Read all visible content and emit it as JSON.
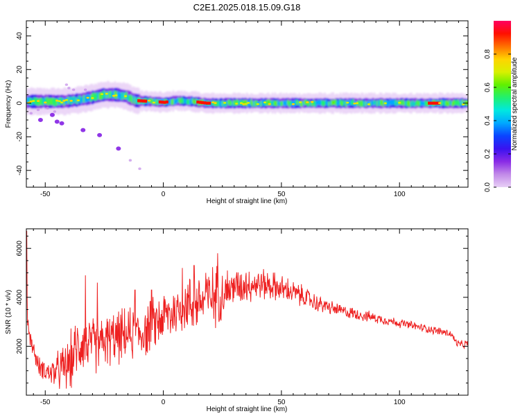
{
  "figure": {
    "title": "C2E1.2025.018.15.09.G18"
  },
  "chart_data": [
    {
      "type": "heatmap",
      "title": "",
      "xlabel": "Height of straight line (km)",
      "ylabel": "Frequency (Hz)",
      "xlim": [
        -58,
        129
      ],
      "ylim": [
        -50,
        49
      ],
      "xticks": [
        -50,
        0,
        50,
        100
      ],
      "yticks": [
        -40,
        -20,
        0,
        20,
        40
      ],
      "colorbar": {
        "label": "Normalized spectral amplitude",
        "range": [
          0,
          1
        ],
        "ticks": [
          "0.0",
          "0.2",
          "0.4",
          "0.6",
          "0.8"
        ],
        "colormap": [
          "#e8d0f6",
          "#c28ae8",
          "#8a2be6",
          "#3a12f0",
          "#0a44ff",
          "#00a8ff",
          "#00e8e0",
          "#20f070",
          "#60f000",
          "#d8f000",
          "#ffd400",
          "#ff7000",
          "#ff1000",
          "#ff0060"
        ]
      },
      "band_center_hz": [
        [
          -58,
          1
        ],
        [
          -50,
          1
        ],
        [
          -42,
          1
        ],
        [
          -36,
          2
        ],
        [
          -30,
          3.5
        ],
        [
          -26,
          5
        ],
        [
          -20,
          5
        ],
        [
          -16,
          4
        ],
        [
          -12,
          1.5
        ],
        [
          -5,
          1
        ],
        [
          0,
          0.5
        ],
        [
          5,
          1.5
        ],
        [
          12,
          1
        ],
        [
          18,
          0
        ],
        [
          30,
          0
        ],
        [
          60,
          0
        ],
        [
          90,
          0
        ],
        [
          110,
          0
        ],
        [
          129,
          0
        ]
      ],
      "strong_segments_km": [
        [
          -11,
          -8
        ],
        [
          -2,
          1
        ],
        [
          14,
          19
        ],
        [
          112,
          116
        ]
      ],
      "scattered_points": [
        {
          "x": -52,
          "y": -10
        },
        {
          "x": -47,
          "y": -7
        },
        {
          "x": -45,
          "y": -11
        },
        {
          "x": -43,
          "y": -12
        },
        {
          "x": -34,
          "y": -16
        },
        {
          "x": -27,
          "y": -19
        },
        {
          "x": -19,
          "y": -27
        },
        {
          "x": -14,
          "y": -34
        },
        {
          "x": -10,
          "y": -39
        },
        {
          "x": -53,
          "y": -4
        },
        {
          "x": -49,
          "y": -3
        },
        {
          "x": -40,
          "y": 9
        },
        {
          "x": -41,
          "y": 11
        },
        {
          "x": -38,
          "y": 8
        },
        {
          "x": -33,
          "y": 8
        },
        {
          "x": -56,
          "y": -6
        },
        {
          "x": -46,
          "y": -5
        }
      ]
    },
    {
      "type": "line",
      "title": "",
      "xlabel": "Height of straight line (km)",
      "ylabel": "SNR (10 * v/v)",
      "xlim": [
        -58,
        129
      ],
      "ylim": [
        0,
        6800
      ],
      "xticks": [
        -50,
        0,
        50,
        100
      ],
      "yticks": [
        2000,
        4000,
        6000
      ],
      "color": "#ee2020",
      "trend": [
        [
          -58,
          6700
        ],
        [
          -57.5,
          3000
        ],
        [
          -56,
          2200
        ],
        [
          -53,
          1200
        ],
        [
          -48,
          900
        ],
        [
          -44,
          1000
        ],
        [
          -40,
          1250
        ],
        [
          -35,
          2200
        ],
        [
          -30,
          2000
        ],
        [
          -25,
          2200
        ],
        [
          -18,
          2400
        ],
        [
          -12,
          2500
        ],
        [
          -8,
          2600
        ],
        [
          -4,
          2900
        ],
        [
          0,
          3200
        ],
        [
          5,
          3400
        ],
        [
          10,
          3700
        ],
        [
          15,
          3800
        ],
        [
          20,
          4000
        ],
        [
          25,
          4200
        ],
        [
          30,
          4400
        ],
        [
          35,
          4500
        ],
        [
          40,
          4550
        ],
        [
          45,
          4500
        ],
        [
          50,
          4350
        ],
        [
          55,
          4200
        ],
        [
          60,
          4000
        ],
        [
          65,
          3750
        ],
        [
          70,
          3600
        ],
        [
          75,
          3450
        ],
        [
          80,
          3350
        ],
        [
          85,
          3250
        ],
        [
          90,
          3150
        ],
        [
          95,
          3050
        ],
        [
          100,
          2950
        ],
        [
          105,
          2850
        ],
        [
          110,
          2750
        ],
        [
          115,
          2650
        ],
        [
          120,
          2550
        ],
        [
          122,
          2480
        ],
        [
          124,
          2150
        ],
        [
          126,
          2050
        ],
        [
          129,
          2100
        ]
      ],
      "noise_amplitude": [
        [
          -58,
          400
        ],
        [
          -50,
          500
        ],
        [
          -38,
          1500
        ],
        [
          -25,
          1300
        ],
        [
          -10,
          1300
        ],
        [
          0,
          1300
        ],
        [
          10,
          1400
        ],
        [
          22,
          1500
        ],
        [
          30,
          900
        ],
        [
          40,
          800
        ],
        [
          55,
          600
        ],
        [
          70,
          350
        ],
        [
          90,
          250
        ],
        [
          110,
          200
        ],
        [
          129,
          200
        ]
      ],
      "peaks": [
        {
          "x": -57.8,
          "y": 6700
        },
        {
          "x": -33,
          "y": 4900
        },
        {
          "x": -28,
          "y": 4600
        },
        {
          "x": -12,
          "y": 4300
        },
        {
          "x": -5,
          "y": 4300
        },
        {
          "x": 8,
          "y": 5200
        },
        {
          "x": 13,
          "y": 5300
        },
        {
          "x": 18,
          "y": 5000
        },
        {
          "x": 23,
          "y": 5800
        },
        {
          "x": 30,
          "y": 4800
        },
        {
          "x": 35,
          "y": 5000
        }
      ]
    }
  ]
}
